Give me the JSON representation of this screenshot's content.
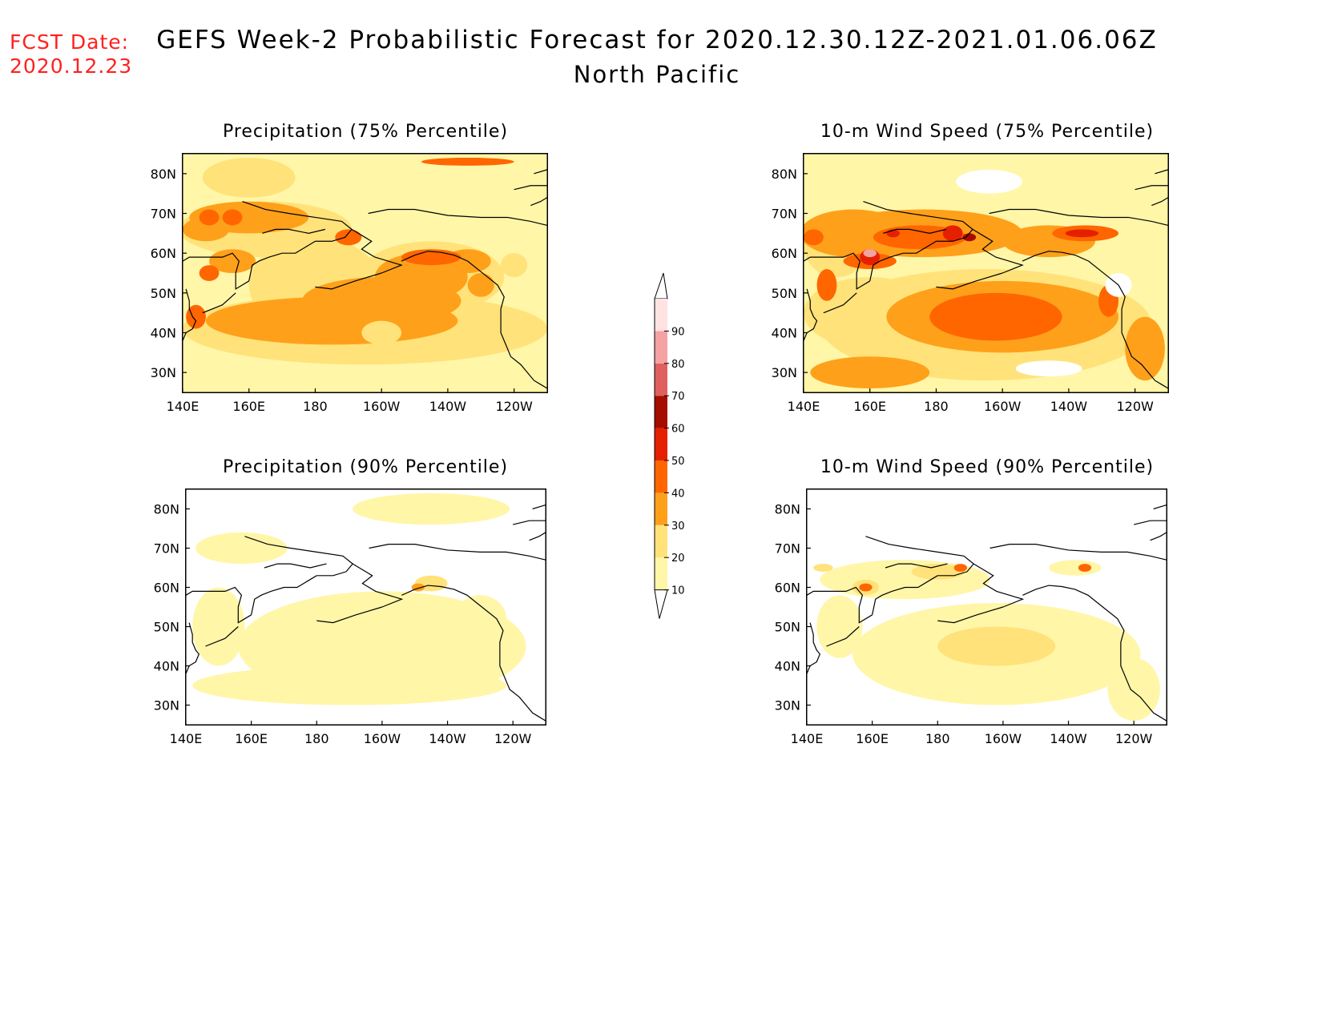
{
  "fcst_label": "FCST Date:",
  "fcst_date": "2020.12.23",
  "title_line1": "GEFS Week-2 Probabilistic Forecast for 2020.12.30.12Z-2021.01.06.06Z",
  "title_line2": "North Pacific",
  "chart_data": [
    {
      "type": "heatmap",
      "panel": "precip75",
      "title": "Precipitation (75% Percentile)",
      "x_ticks": [
        "140E",
        "160E",
        "180",
        "160W",
        "140W",
        "120W"
      ],
      "y_ticks": [
        "80N",
        "70N",
        "60N",
        "50N",
        "40N",
        "30N"
      ],
      "xlim_deg_east": [
        140,
        250
      ],
      "ylim_deg_north": [
        25,
        85
      ],
      "grid": false
    },
    {
      "type": "heatmap",
      "panel": "wind75",
      "title": "10-m Wind Speed (75% Percentile)",
      "x_ticks": [
        "140E",
        "160E",
        "180",
        "160W",
        "140W",
        "120W"
      ],
      "y_ticks": [
        "80N",
        "70N",
        "60N",
        "50N",
        "40N",
        "30N"
      ],
      "xlim_deg_east": [
        140,
        250
      ],
      "ylim_deg_north": [
        25,
        85
      ],
      "grid": false
    },
    {
      "type": "heatmap",
      "panel": "precip90",
      "title": "Precipitation (90% Percentile)",
      "x_ticks": [
        "140E",
        "160E",
        "180",
        "160W",
        "140W",
        "120W"
      ],
      "y_ticks": [
        "80N",
        "70N",
        "60N",
        "50N",
        "40N",
        "30N"
      ],
      "xlim_deg_east": [
        140,
        250
      ],
      "ylim_deg_north": [
        25,
        85
      ],
      "grid": false
    },
    {
      "type": "heatmap",
      "panel": "wind90",
      "title": "10-m Wind Speed (90% Percentile)",
      "x_ticks": [
        "140E",
        "160E",
        "180",
        "160W",
        "140W",
        "120W"
      ],
      "y_ticks": [
        "80N",
        "70N",
        "60N",
        "50N",
        "40N",
        "30N"
      ],
      "xlim_deg_east": [
        140,
        250
      ],
      "ylim_deg_north": [
        25,
        85
      ],
      "grid": false
    }
  ],
  "colorbar": {
    "levels": [
      "10",
      "20",
      "30",
      "40",
      "50",
      "60",
      "70",
      "80",
      "90"
    ],
    "colors": [
      "#fff6a8",
      "#ffe27a",
      "#ffa01a",
      "#ff6600",
      "#e52000",
      "#a50d00",
      "#e06060",
      "#f4a2a2",
      "#ffe2e2"
    ]
  }
}
